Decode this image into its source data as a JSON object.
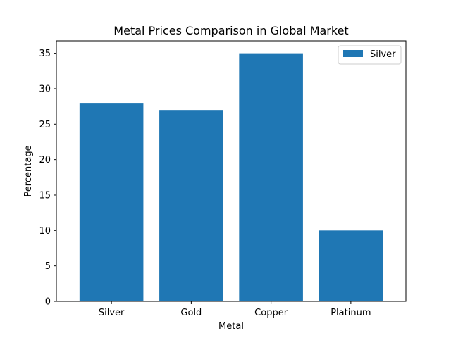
{
  "chart_data": {
    "type": "bar",
    "title": "Metal Prices Comparison in Global Market",
    "xlabel": "Metal",
    "ylabel": "Percentage",
    "categories": [
      "Silver",
      "Gold",
      "Copper",
      "Platinum"
    ],
    "series": [
      {
        "name": "Silver",
        "values": [
          28,
          27,
          35,
          10
        ],
        "color": "#1f77b4"
      }
    ],
    "ylim": [
      0,
      36.75
    ],
    "yticks": [
      0,
      5,
      10,
      15,
      20,
      25,
      30,
      35
    ],
    "grid": false,
    "legend": "upper right"
  }
}
